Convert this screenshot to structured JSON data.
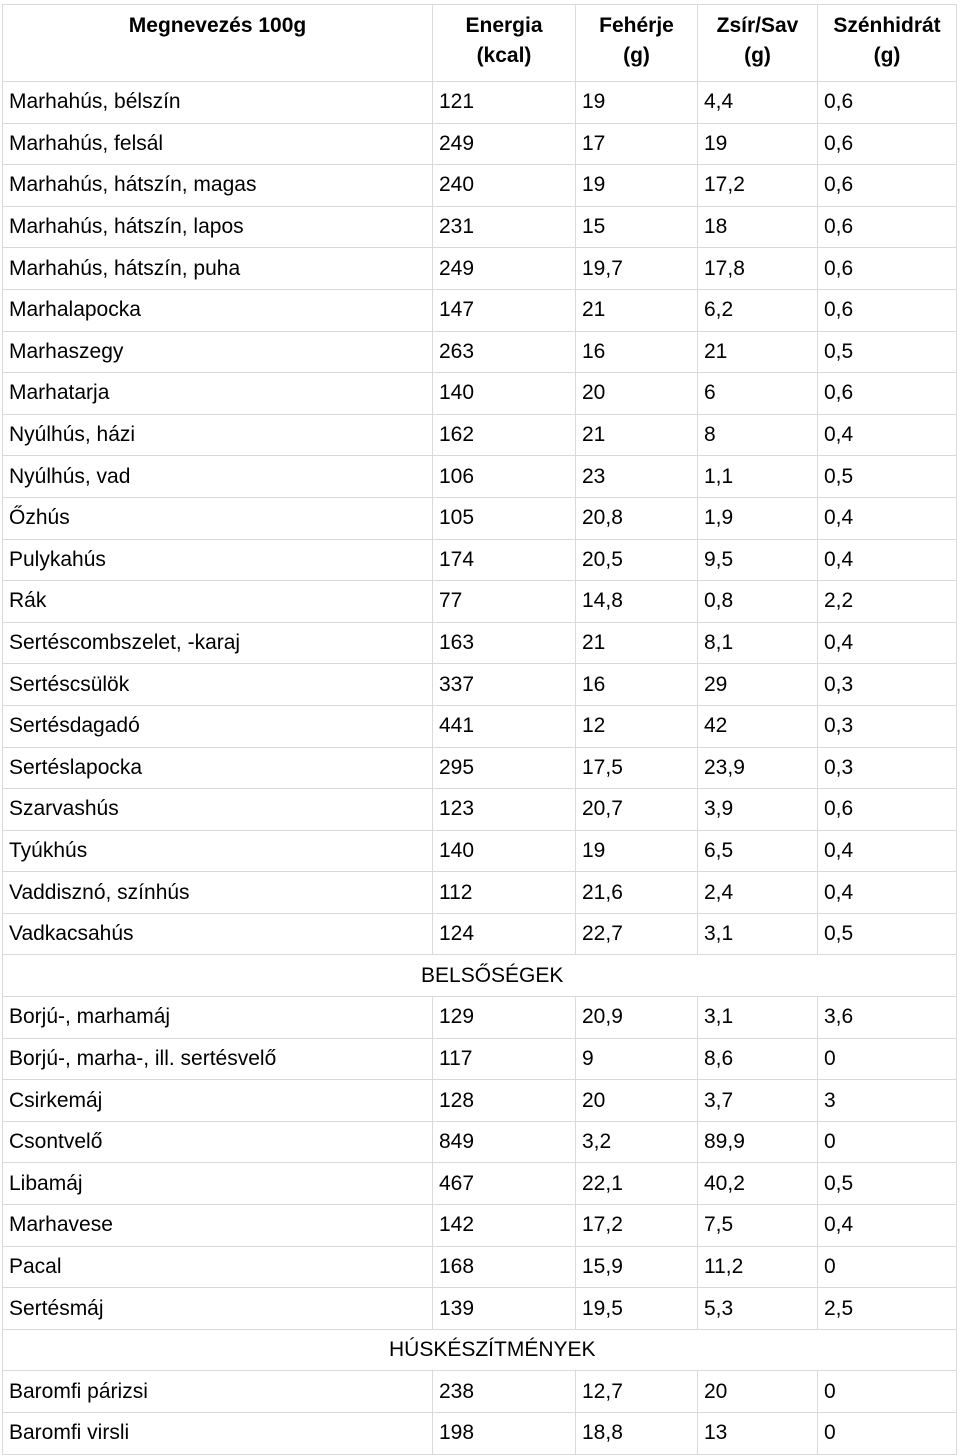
{
  "headers": [
    {
      "line1": "Megnevezés 100g",
      "line2": ""
    },
    {
      "line1": "Energia",
      "line2": "(kcal)"
    },
    {
      "line1": "Fehérje",
      "line2": "(g)"
    },
    {
      "line1": "Zsír/Sav",
      "line2": "(g)"
    },
    {
      "line1": "Szénhidrát",
      "line2": "(g)"
    }
  ],
  "rows": [
    {
      "type": "data",
      "cells": [
        "Marhahús, bélszín",
        "121",
        "19",
        "4,4",
        "0,6"
      ]
    },
    {
      "type": "data",
      "cells": [
        "Marhahús, felsál",
        "249",
        "17",
        "19",
        "0,6"
      ]
    },
    {
      "type": "data",
      "cells": [
        "Marhahús, hátszín, magas",
        "240",
        "19",
        "17,2",
        "0,6"
      ]
    },
    {
      "type": "data",
      "cells": [
        "Marhahús, hátszín, lapos",
        "231",
        "15",
        "18",
        "0,6"
      ]
    },
    {
      "type": "data",
      "cells": [
        "Marhahús, hátszín, puha",
        "249",
        "19,7",
        "17,8",
        "0,6"
      ]
    },
    {
      "type": "data",
      "cells": [
        "Marhalapocka",
        "147",
        "21",
        "6,2",
        "0,6"
      ]
    },
    {
      "type": "data",
      "cells": [
        "Marhaszegy",
        "263",
        "16",
        "21",
        "0,5"
      ]
    },
    {
      "type": "data",
      "cells": [
        "Marhatarja",
        "140",
        "20",
        "6",
        "0,6"
      ]
    },
    {
      "type": "data",
      "cells": [
        "Nyúlhús, házi",
        "162",
        "21",
        "8",
        "0,4"
      ]
    },
    {
      "type": "data",
      "cells": [
        "Nyúlhús, vad",
        "106",
        "23",
        "1,1",
        "0,5"
      ]
    },
    {
      "type": "data",
      "cells": [
        "Őzhús",
        "105",
        "20,8",
        "1,9",
        "0,4"
      ]
    },
    {
      "type": "data",
      "cells": [
        "Pulykahús",
        "174",
        "20,5",
        "9,5",
        "0,4"
      ]
    },
    {
      "type": "data",
      "cells": [
        "Rák",
        "77",
        "14,8",
        "0,8",
        "2,2"
      ]
    },
    {
      "type": "data",
      "cells": [
        "Sertéscombszelet, -karaj",
        "163",
        "21",
        "8,1",
        "0,4"
      ]
    },
    {
      "type": "data",
      "cells": [
        "Sertéscsülök",
        "337",
        "16",
        "29",
        "0,3"
      ]
    },
    {
      "type": "data",
      "cells": [
        "Sertésdagadó",
        "441",
        "12",
        "42",
        "0,3"
      ]
    },
    {
      "type": "data",
      "cells": [
        "Sertéslapocka",
        "295",
        "17,5",
        "23,9",
        "0,3"
      ]
    },
    {
      "type": "data",
      "cells": [
        "Szarvashús",
        "123",
        "20,7",
        "3,9",
        "0,6"
      ]
    },
    {
      "type": "data",
      "cells": [
        "Tyúkhús",
        "140",
        "19",
        "6,5",
        "0,4"
      ]
    },
    {
      "type": "data",
      "cells": [
        "Vaddisznó, színhús",
        "112",
        "21,6",
        "2,4",
        "0,4"
      ]
    },
    {
      "type": "data",
      "cells": [
        "Vadkacsahús",
        "124",
        "22,7",
        "3,1",
        "0,5"
      ]
    },
    {
      "type": "section",
      "label": "BELSŐSÉGEK"
    },
    {
      "type": "data",
      "cells": [
        "Borjú-, marhamáj",
        "129",
        "20,9",
        "3,1",
        "3,6"
      ]
    },
    {
      "type": "data",
      "cells": [
        "Borjú-, marha-, ill. sertésvelő",
        "117",
        "9",
        "8,6",
        "0"
      ]
    },
    {
      "type": "data",
      "cells": [
        "Csirkemáj",
        "128",
        "20",
        "3,7",
        "3"
      ]
    },
    {
      "type": "data",
      "cells": [
        "Csontvelő",
        "849",
        "3,2",
        "89,9",
        "0"
      ]
    },
    {
      "type": "data",
      "cells": [
        "Libamáj",
        "467",
        "22,1",
        "40,2",
        "0,5"
      ]
    },
    {
      "type": "data",
      "cells": [
        "Marhavese",
        "142",
        "17,2",
        "7,5",
        "0,4"
      ]
    },
    {
      "type": "data",
      "cells": [
        "Pacal",
        "168",
        "15,9",
        "11,2",
        "0"
      ]
    },
    {
      "type": "data",
      "cells": [
        "Sertésmáj",
        "139",
        "19,5",
        "5,3",
        "2,5"
      ]
    },
    {
      "type": "section",
      "label": "HÚSKÉSZÍTMÉNYEK"
    },
    {
      "type": "data",
      "cells": [
        "Baromfi párizsi",
        "238",
        "12,7",
        "20",
        "0"
      ]
    },
    {
      "type": "data",
      "cells": [
        "Baromfi virsli",
        "198",
        "18,8",
        "13",
        "0"
      ]
    }
  ]
}
